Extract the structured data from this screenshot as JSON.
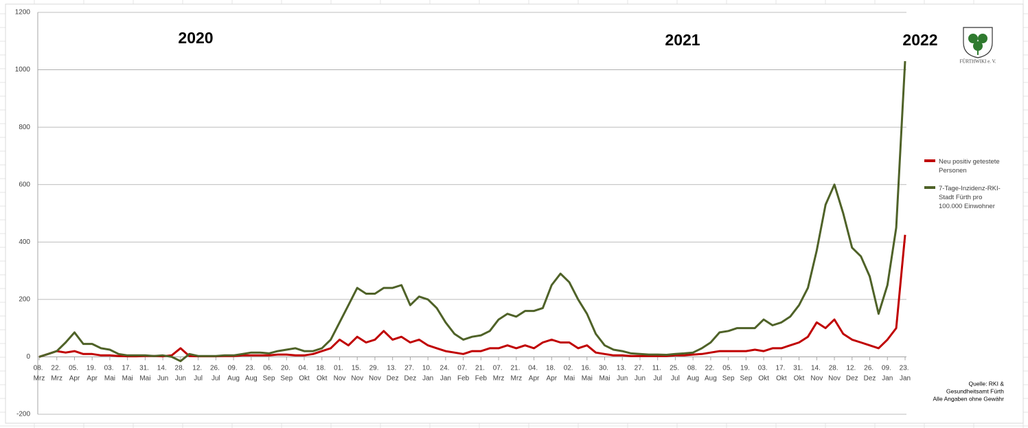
{
  "chart_data": {
    "type": "line",
    "annotations": [
      "2020",
      "2021",
      "2022"
    ],
    "source": [
      "Quelle: RKI &",
      "Gesundheitsamt Fürth",
      "Alle Angaben ohne Gewähr"
    ],
    "logo_text": "FÜRTHWIKI e. V.",
    "categories": [
      "08. Mrz",
      null,
      "22. Mrz",
      null,
      "05. Apr",
      null,
      "19. Apr",
      null,
      "03. Mai",
      null,
      "17. Mai",
      null,
      "31. Mai",
      null,
      "14. Jun",
      null,
      "28. Jun",
      null,
      "12. Jul",
      null,
      "26. Jul",
      null,
      "09. Aug",
      null,
      "23. Aug",
      null,
      "06. Sep",
      null,
      "20. Sep",
      null,
      "04. Okt",
      null,
      "18. Okt",
      null,
      "01. Nov",
      null,
      "15. Nov",
      null,
      "29. Nov",
      null,
      "13. Dez",
      null,
      "27. Dez",
      null,
      "10. Jan",
      null,
      "24. Jan",
      null,
      "07. Feb",
      null,
      "21. Feb",
      null,
      "07. Mrz",
      null,
      "21. Mrz",
      null,
      "04. Apr",
      null,
      "18. Apr",
      null,
      "02. Mai",
      null,
      "16. Mai",
      null,
      "30. Mai",
      null,
      "13. Jun",
      null,
      "27. Jun",
      null,
      "11. Jul",
      null,
      "25. Jul",
      null,
      "08. Aug",
      null,
      "22. Aug",
      null,
      "05. Sep",
      null,
      "19. Sep",
      null,
      "03. Okt",
      null,
      "17. Okt",
      null,
      "31. Okt",
      null,
      "14. Nov",
      null,
      "28. Nov",
      null,
      "12. Dez",
      null,
      "26. Dez",
      null,
      "09. Jan",
      null,
      "23. Jan"
    ],
    "series": [
      {
        "name": "Neu positiv getestete Personen",
        "color": "#c00000",
        "values": [
          0,
          10,
          20,
          15,
          20,
          10,
          10,
          5,
          5,
          3,
          2,
          2,
          3,
          3,
          2,
          5,
          30,
          3,
          2,
          2,
          2,
          3,
          3,
          5,
          5,
          5,
          5,
          8,
          8,
          5,
          5,
          10,
          20,
          30,
          60,
          40,
          70,
          50,
          60,
          90,
          60,
          70,
          50,
          60,
          40,
          30,
          20,
          15,
          10,
          20,
          20,
          30,
          30,
          40,
          30,
          40,
          30,
          50,
          60,
          50,
          50,
          30,
          40,
          15,
          10,
          5,
          5,
          3,
          3,
          3,
          3,
          3,
          5,
          5,
          8,
          10,
          15,
          20,
          20,
          20,
          20,
          25,
          20,
          30,
          30,
          40,
          50,
          70,
          120,
          100,
          130,
          80,
          60,
          50,
          40,
          30,
          60,
          100,
          425
        ]
      },
      {
        "name": "7-Tage-Inzidenz-RKI-Stadt Fürth pro 100.000 Einwohner",
        "color": "#4f6228",
        "values": [
          0,
          10,
          20,
          50,
          85,
          45,
          45,
          30,
          25,
          10,
          5,
          5,
          5,
          3,
          5,
          0,
          -15,
          10,
          3,
          3,
          3,
          5,
          5,
          10,
          15,
          15,
          12,
          20,
          25,
          30,
          20,
          20,
          30,
          60,
          120,
          180,
          240,
          220,
          220,
          240,
          240,
          250,
          180,
          210,
          200,
          170,
          120,
          80,
          60,
          70,
          75,
          90,
          130,
          150,
          140,
          160,
          160,
          170,
          250,
          290,
          260,
          200,
          150,
          80,
          40,
          25,
          20,
          12,
          10,
          8,
          8,
          7,
          10,
          12,
          15,
          30,
          50,
          85,
          90,
          100,
          100,
          100,
          130,
          110,
          120,
          140,
          180,
          240,
          370,
          530,
          600,
          500,
          380,
          350,
          280,
          150,
          250,
          450,
          1030
        ]
      }
    ],
    "ylim": [
      -200,
      1200
    ],
    "yticks": [
      -200,
      0,
      200,
      400,
      600,
      800,
      1000,
      1200
    ],
    "grid": true
  }
}
